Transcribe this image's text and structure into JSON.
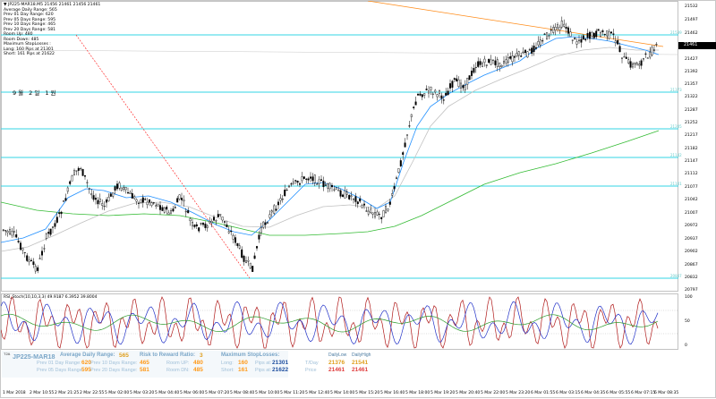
{
  "info_lines": [
    "▼ JP225-MAR18.M5  21456  21461  21456  21461",
    "Average Daily  Range: 565",
    "Prev 01  Day  Range: 620",
    "Prev 05  Days Range: 595",
    "Prev 10  Days Range: 465",
    "Prev 20  Days Range: 581",
    "Room Up:     480",
    "Room Down: 485",
    "Maximum StopLosses :",
    "Long: 160 Pips at 21301",
    "Short: 161 Pips at 21622"
  ],
  "korean_label": "9월 2일 1원",
  "current_price": "21461",
  "price_ticks": [
    "21532",
    "21497",
    "21462",
    "21427",
    "21392",
    "21357",
    "21322",
    "21287",
    "21252",
    "21217",
    "21182",
    "21147",
    "21112",
    "21077",
    "21042",
    "21007",
    "20972",
    "20937",
    "20902",
    "20867",
    "20832",
    "20797"
  ],
  "level_labels": [
    "21539",
    "21373",
    "21205",
    "21142",
    "21101",
    "20847"
  ],
  "osc_label": "RSI_Stoch(10,10,3,3) 49.9187  6.3952  39.8004",
  "osc_ticks": [
    "100",
    "50",
    "0"
  ],
  "time_labels": [
    "1 Mar 2018",
    "2 Mar 10:55",
    "2 Mar 21:25",
    "2 Mar 22:55",
    "5 Mar 02:00",
    "5 Mar 03:20",
    "5 Mar 04:40",
    "5 Mar 06:00",
    "5 Mar 07:20",
    "5 Mar 08:40",
    "5 Mar 10:00",
    "5 Mar 11:20",
    "5 Mar 12:40",
    "5 Mar 14:00",
    "5 Mar 15:20",
    "5 Mar 16:40",
    "5 Mar 18:00",
    "5 Mar 19:20",
    "5 Mar 20:40",
    "5 Mar 22:00",
    "5 Mar 23:20",
    "6 Mar 01:55",
    "6 Mar 03:15",
    "6 Mar 04:35",
    "6 Mar 05:55",
    "6 Mar 07:15",
    "6 Mar 08:35"
  ],
  "panel": {
    "t2a": "T2A",
    "symbol": "JP225-MAR18",
    "adr_label": "Average Daily Range:",
    "adr_value": "565",
    "prev01_label": "Prev 01 Day Range:",
    "prev01_value": "620",
    "prev05_label": "Prev 05 Days Range:",
    "prev05_value": "595",
    "prev10_label": "Prev 10 Days Range:",
    "prev10_value": "465",
    "prev20_label": "Prev 20 Days Range:",
    "prev20_value": "581",
    "rr_label": "Risk to Reward Ratio:",
    "rr_value": "3",
    "roomup_label": "Room UP:",
    "roomup_value": "480",
    "roomdn_label": "Room DN:",
    "roomdn_value": "485",
    "maxsl_label": "Maximum StopLosses:",
    "long_label": "Long:",
    "long_pips": "160",
    "long_at": "Pips at:",
    "long_price": "21301",
    "short_label": "Short:",
    "short_pips": "161",
    "short_at": "Pips at:",
    "short_price": "21622",
    "daily_low_label": "DailyLow",
    "daily_high_label": "DailyHigh",
    "tday_label": "T/Day",
    "tday_low": "21376",
    "tday_high": "21541",
    "price_label": "Price",
    "price_low": "21461",
    "price_high": "21461"
  },
  "colors": {
    "levels": "#33d6e6",
    "ma_fast": "#1f8fff",
    "ma_mid": "#b0b0b0",
    "ma_slow": "#33bb33",
    "trend_red": "#ff3030",
    "trend_orange": "#ff8c1a",
    "osc_red": "#b01818",
    "osc_blue": "#2030c8",
    "osc_green": "#2a9a2a"
  }
}
